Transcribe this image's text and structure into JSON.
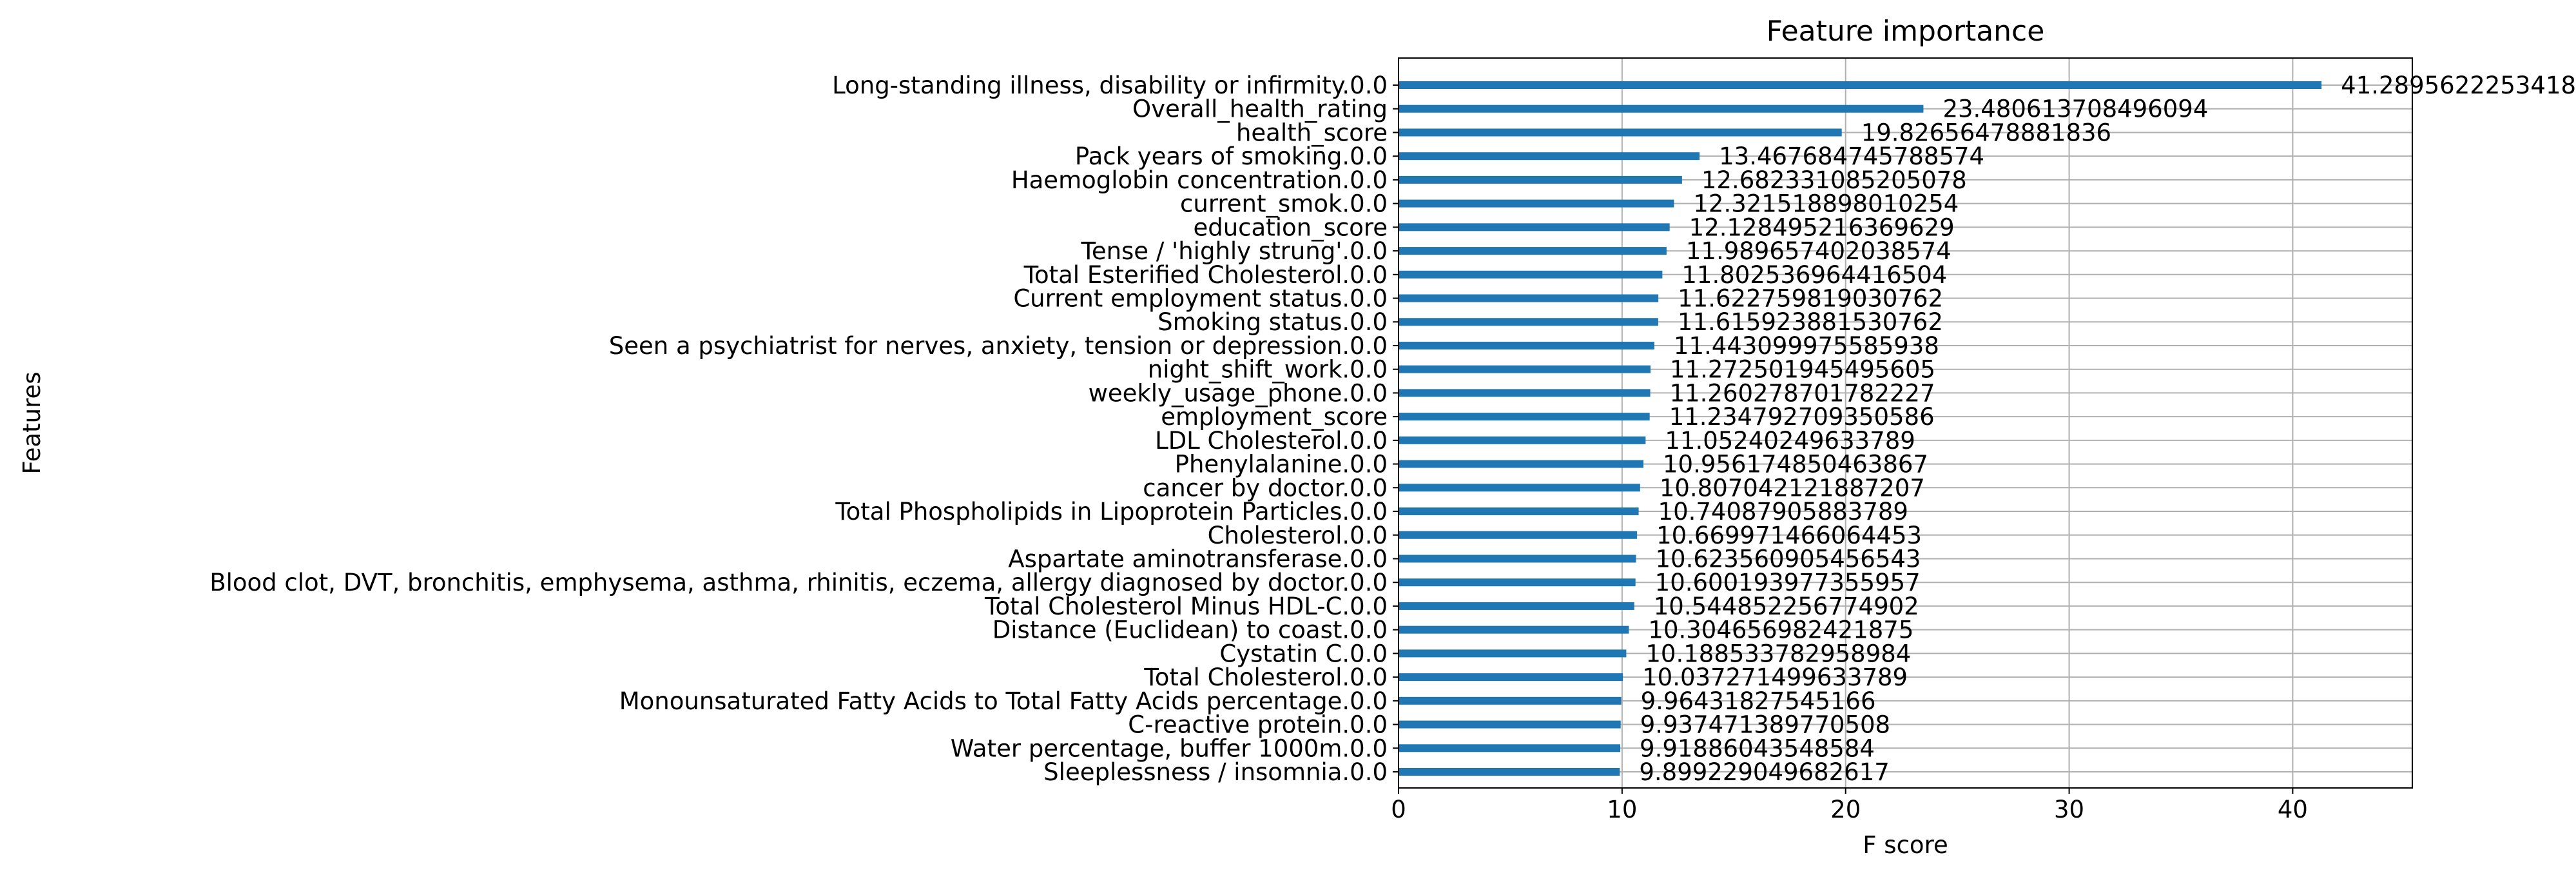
{
  "chart_data": {
    "type": "bar",
    "orientation": "horizontal",
    "title": "Feature importance",
    "xlabel": "F score",
    "ylabel": "Features",
    "xlim": [
      0,
      45.35
    ],
    "xticks": [
      0,
      10,
      20,
      30,
      40
    ],
    "xtick_labels": [
      "0",
      "10",
      "20",
      "30",
      "40"
    ],
    "grid": true,
    "bar_color": "#1f77b4",
    "categories": [
      "Long-standing illness, disability or infirmity.0.0",
      "Overall_health_rating",
      "health_score",
      "Pack years of smoking.0.0",
      "Haemoglobin concentration.0.0",
      "current_smok.0.0",
      "education_score",
      "Tense / 'highly strung'.0.0",
      "Total Esterified Cholesterol.0.0",
      "Current employment status.0.0",
      "Smoking status.0.0",
      "Seen a psychiatrist for nerves, anxiety, tension or depression.0.0",
      "night_shift_work.0.0",
      "weekly_usage_phone.0.0",
      "employment_score",
      "LDL Cholesterol.0.0",
      "Phenylalanine.0.0",
      "cancer by doctor.0.0",
      "Total Phospholipids in Lipoprotein Particles.0.0",
      "Cholesterol.0.0",
      "Aspartate aminotransferase.0.0",
      "Blood clot, DVT, bronchitis, emphysema, asthma, rhinitis, eczema, allergy diagnosed by doctor.0.0",
      "Total Cholesterol Minus HDL-C.0.0",
      "Distance (Euclidean) to coast.0.0",
      "Cystatin C.0.0",
      "Total Cholesterol.0.0",
      "Monounsaturated Fatty Acids to Total Fatty Acids percentage.0.0",
      "C-reactive protein.0.0",
      "Water percentage, buffer 1000m.0.0",
      "Sleeplessness / insomnia.0.0"
    ],
    "values": [
      41.2895622253418,
      23.480613708496094,
      19.82656478881836,
      13.467684745788574,
      12.682331085205078,
      12.321518898010254,
      12.128495216369629,
      11.989657402038574,
      11.802536964416504,
      11.622759819030762,
      11.615923881530762,
      11.443099975585938,
      11.272501945495605,
      11.260278701782227,
      11.234792709350586,
      11.05240249633789,
      10.956174850463867,
      10.807042121887207,
      10.74087905883789,
      10.669971466064453,
      10.623560905456543,
      10.600193977355957,
      10.544852256774902,
      10.304656982421875,
      10.188533782958984,
      10.037271499633789,
      9.96431827545166,
      9.937471389770508,
      9.91886043548584,
      9.899229049682617
    ],
    "value_labels": [
      "41.2895622253418",
      "23.480613708496094",
      "19.82656478881836",
      "13.467684745788574",
      "12.682331085205078",
      "12.321518898010254",
      "12.128495216369629",
      "11.989657402038574",
      "11.802536964416504",
      "11.622759819030762",
      "11.615923881530762",
      "11.443099975585938",
      "11.272501945495605",
      "11.260278701782227",
      "11.234792709350586",
      "11.05240249633789",
      "10.956174850463867",
      "10.807042121887207",
      "10.74087905883789",
      "10.669971466064453",
      "10.623560905456543",
      "10.600193977355957",
      "10.544852256774902",
      "10.304656982421875",
      "10.188533782958984",
      "10.037271499633789",
      "9.96431827545166",
      "9.937471389770508",
      "9.91886043548584",
      "9.899229049682617"
    ]
  }
}
